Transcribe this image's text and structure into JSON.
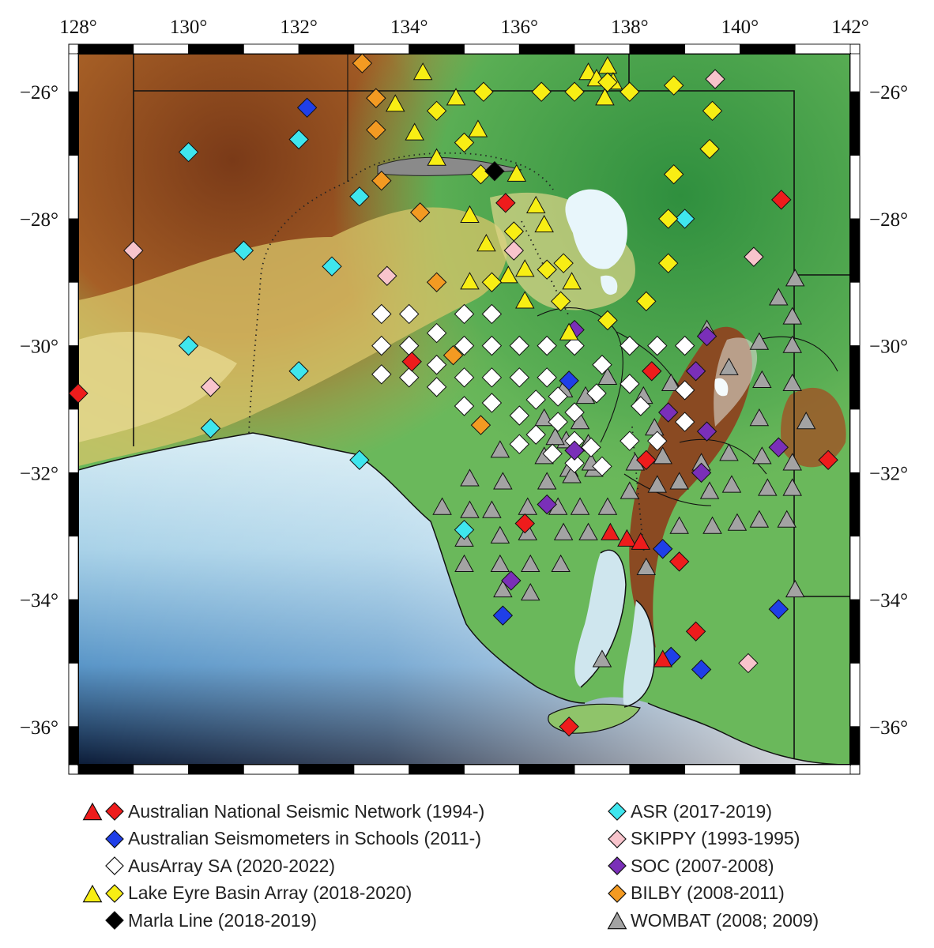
{
  "map": {
    "lon_ticks": [
      "128°",
      "130°",
      "132°",
      "134°",
      "136°",
      "138°",
      "140°",
      "142°"
    ],
    "lat_ticks": [
      "−26°",
      "−28°",
      "−30°",
      "−32°",
      "−34°",
      "−36°"
    ],
    "lon_values": [
      128,
      130,
      132,
      134,
      136,
      138,
      140,
      142
    ],
    "lat_values": [
      -26,
      -28,
      -30,
      -32,
      -34,
      -36
    ],
    "extent": {
      "lon": [
        128,
        142
      ],
      "lat": [
        -36.6,
        -25.4
      ]
    }
  },
  "colors": {
    "ANSN": "#ee1c1c",
    "AuSIS": "#1f3fe8",
    "AusArray": "#ffffff",
    "LEBA": "#f8ee14",
    "Marla": "#000000",
    "ASR": "#3fe6ee",
    "SKIPPY": "#f8c4cc",
    "SOC": "#7a2fb8",
    "BILBY": "#f39a22",
    "WOMBAT": "#a3a3a3"
  },
  "legend": {
    "left": [
      {
        "label": "Australian National Seismic Network (1994-)",
        "symbols": [
          "triangle",
          "diamond"
        ],
        "network": "ANSN"
      },
      {
        "label": "Australian Seismometers in Schools (2011-)",
        "symbols": [
          "diamond"
        ],
        "network": "AuSIS"
      },
      {
        "label": "AusArray SA (2020-2022)",
        "symbols": [
          "diamond"
        ],
        "network": "AusArray"
      },
      {
        "label": "Lake Eyre Basin Array (2018-2020)",
        "symbols": [
          "triangle",
          "diamond"
        ],
        "network": "LEBA"
      },
      {
        "label": "Marla Line (2018-2019)",
        "symbols": [
          "diamond"
        ],
        "network": "Marla"
      }
    ],
    "right": [
      {
        "label": "ASR (2017-2019)",
        "symbols": [
          "diamond"
        ],
        "network": "ASR"
      },
      {
        "label": "SKIPPY (1993-1995)",
        "symbols": [
          "diamond"
        ],
        "network": "SKIPPY"
      },
      {
        "label": "SOC (2007-2008)",
        "symbols": [
          "diamond"
        ],
        "network": "SOC"
      },
      {
        "label": "BILBY (2008-2011)",
        "symbols": [
          "diamond"
        ],
        "network": "BILBY"
      },
      {
        "label": "WOMBAT (2008; 2009)",
        "symbols": [
          "triangle"
        ],
        "network": "WOMBAT"
      }
    ]
  },
  "stations": {
    "ANSN": {
      "diamond": [
        [
          128.0,
          -30.75
        ],
        [
          134.05,
          -30.25
        ],
        [
          135.75,
          -27.75
        ],
        [
          138.4,
          -30.4
        ],
        [
          138.3,
          -31.8
        ],
        [
          136.1,
          -32.8
        ],
        [
          138.9,
          -33.4
        ],
        [
          139.2,
          -34.5
        ],
        [
          136.9,
          -36.0
        ],
        [
          140.75,
          -27.7
        ],
        [
          141.6,
          -31.8
        ]
      ],
      "triangle": [
        [
          137.65,
          -32.95
        ],
        [
          137.95,
          -33.05
        ],
        [
          138.2,
          -33.1
        ],
        [
          138.6,
          -34.95
        ]
      ]
    },
    "AuSIS": {
      "diamond": [
        [
          132.15,
          -26.25
        ],
        [
          136.9,
          -30.55
        ],
        [
          138.6,
          -33.2
        ],
        [
          135.7,
          -34.25
        ],
        [
          138.75,
          -34.9
        ],
        [
          139.3,
          -35.1
        ],
        [
          140.7,
          -34.15
        ]
      ]
    },
    "AusArray": {
      "diamond": [
        [
          133.5,
          -29.5
        ],
        [
          134.0,
          -29.5
        ],
        [
          135.0,
          -29.5
        ],
        [
          135.5,
          -29.5
        ],
        [
          133.5,
          -30.0
        ],
        [
          134.0,
          -30.0
        ],
        [
          134.5,
          -29.8
        ],
        [
          135.0,
          -30.0
        ],
        [
          135.5,
          -30.0
        ],
        [
          136.0,
          -30.0
        ],
        [
          136.5,
          -30.0
        ],
        [
          137.0,
          -30.0
        ],
        [
          133.5,
          -30.45
        ],
        [
          134.0,
          -30.5
        ],
        [
          134.5,
          -30.3
        ],
        [
          135.0,
          -30.5
        ],
        [
          135.5,
          -30.5
        ],
        [
          136.0,
          -30.5
        ],
        [
          136.5,
          -30.5
        ],
        [
          137.5,
          -30.3
        ],
        [
          134.5,
          -30.65
        ],
        [
          135.0,
          -30.95
        ],
        [
          135.5,
          -30.9
        ],
        [
          136.0,
          -31.1
        ],
        [
          136.3,
          -30.85
        ],
        [
          136.7,
          -30.8
        ],
        [
          137.0,
          -31.05
        ],
        [
          137.4,
          -30.75
        ],
        [
          136.3,
          -31.4
        ],
        [
          136.7,
          -31.2
        ],
        [
          136.0,
          -31.55
        ],
        [
          136.6,
          -31.7
        ],
        [
          137.0,
          -31.5
        ],
        [
          137.3,
          -31.6
        ],
        [
          137.5,
          -31.9
        ],
        [
          137.0,
          -31.85
        ],
        [
          138.0,
          -30.0
        ],
        [
          138.5,
          -30.0
        ],
        [
          139.0,
          -30.0
        ],
        [
          138.0,
          -30.6
        ],
        [
          138.2,
          -30.95
        ],
        [
          138.0,
          -31.5
        ],
        [
          138.5,
          -31.5
        ],
        [
          139.0,
          -30.7
        ],
        [
          139.0,
          -31.2
        ]
      ]
    },
    "LEBA": {
      "diamond": [
        [
          134.5,
          -26.3
        ],
        [
          135.0,
          -26.8
        ],
        [
          135.35,
          -26.0
        ],
        [
          136.4,
          -26.0
        ],
        [
          137.0,
          -26.0
        ],
        [
          137.6,
          -25.85
        ],
        [
          138.0,
          -26.0
        ],
        [
          138.8,
          -25.9
        ],
        [
          139.5,
          -26.3
        ],
        [
          139.45,
          -26.9
        ],
        [
          138.8,
          -27.3
        ],
        [
          138.7,
          -28.0
        ],
        [
          138.7,
          -28.7
        ],
        [
          138.3,
          -29.3
        ],
        [
          137.6,
          -29.6
        ],
        [
          136.75,
          -29.3
        ],
        [
          136.5,
          -28.8
        ],
        [
          136.8,
          -28.7
        ],
        [
          135.9,
          -28.2
        ],
        [
          135.5,
          -29.0
        ],
        [
          135.3,
          -27.3
        ]
      ],
      "triangle": [
        [
          134.25,
          -25.7
        ],
        [
          133.75,
          -26.2
        ],
        [
          134.1,
          -26.65
        ],
        [
          134.85,
          -26.1
        ],
        [
          135.25,
          -26.6
        ],
        [
          134.5,
          -27.05
        ],
        [
          135.95,
          -27.3
        ],
        [
          135.1,
          -27.95
        ],
        [
          136.3,
          -27.8
        ],
        [
          136.45,
          -28.1
        ],
        [
          135.4,
          -28.4
        ],
        [
          136.1,
          -28.8
        ],
        [
          135.8,
          -28.9
        ],
        [
          135.1,
          -29.0
        ],
        [
          136.1,
          -29.3
        ],
        [
          136.95,
          -29.0
        ],
        [
          137.25,
          -25.7
        ],
        [
          137.4,
          -25.8
        ],
        [
          137.6,
          -25.6
        ],
        [
          137.55,
          -26.1
        ],
        [
          137.7,
          -25.85
        ],
        [
          136.9,
          -29.8
        ]
      ]
    },
    "Marla": {
      "diamond": [
        [
          135.55,
          -27.25
        ]
      ]
    },
    "ASR": {
      "diamond": [
        [
          130.0,
          -26.95
        ],
        [
          132.0,
          -26.75
        ],
        [
          133.1,
          -27.65
        ],
        [
          131.0,
          -28.5
        ],
        [
          132.6,
          -28.75
        ],
        [
          130.0,
          -30.0
        ],
        [
          132.0,
          -30.4
        ],
        [
          130.4,
          -31.3
        ],
        [
          133.1,
          -31.8
        ],
        [
          135.0,
          -32.9
        ],
        [
          139.0,
          -28.0
        ]
      ]
    },
    "SKIPPY": {
      "diamond": [
        [
          129.0,
          -28.5
        ],
        [
          133.6,
          -28.9
        ],
        [
          135.9,
          -28.5
        ],
        [
          130.4,
          -30.65
        ],
        [
          139.55,
          -25.8
        ],
        [
          140.25,
          -28.6
        ],
        [
          140.15,
          -35.0
        ]
      ]
    },
    "SOC": {
      "diamond": [
        [
          137.0,
          -29.75
        ],
        [
          139.4,
          -29.85
        ],
        [
          139.2,
          -30.4
        ],
        [
          138.7,
          -31.05
        ],
        [
          139.4,
          -31.35
        ],
        [
          140.7,
          -31.6
        ],
        [
          136.5,
          -32.5
        ],
        [
          135.85,
          -33.7
        ],
        [
          137.0,
          -31.65
        ],
        [
          139.3,
          -32.0
        ]
      ]
    },
    "BILBY": {
      "diamond": [
        [
          133.15,
          -25.55
        ],
        [
          133.4,
          -26.1
        ],
        [
          133.4,
          -26.6
        ],
        [
          134.2,
          -27.9
        ],
        [
          134.5,
          -29.0
        ],
        [
          134.8,
          -30.15
        ],
        [
          135.3,
          -31.25
        ],
        [
          133.5,
          -27.4
        ]
      ]
    },
    "WOMBAT": {
      "triangle": [
        [
          135.1,
          -32.1
        ],
        [
          135.65,
          -31.65
        ],
        [
          135.7,
          -32.15
        ],
        [
          134.6,
          -32.55
        ],
        [
          135.1,
          -32.6
        ],
        [
          135.5,
          -32.6
        ],
        [
          136.15,
          -32.55
        ],
        [
          136.7,
          -32.55
        ],
        [
          137.1,
          -32.55
        ],
        [
          137.6,
          -32.55
        ],
        [
          135.0,
          -33.05
        ],
        [
          135.65,
          -33.0
        ],
        [
          136.15,
          -32.95
        ],
        [
          136.8,
          -32.95
        ],
        [
          137.25,
          -32.95
        ],
        [
          135.0,
          -33.45
        ],
        [
          135.65,
          -33.45
        ],
        [
          136.2,
          -33.45
        ],
        [
          136.75,
          -33.45
        ],
        [
          135.7,
          -33.85
        ],
        [
          136.2,
          -33.9
        ],
        [
          136.45,
          -31.75
        ],
        [
          136.85,
          -31.5
        ],
        [
          136.9,
          -31.95
        ],
        [
          137.35,
          -31.95
        ],
        [
          137.25,
          -31.55
        ],
        [
          136.5,
          -32.15
        ],
        [
          136.95,
          -32.05
        ],
        [
          137.3,
          -31.85
        ],
        [
          136.8,
          -30.7
        ],
        [
          137.2,
          -30.8
        ],
        [
          136.65,
          -31.45
        ],
        [
          136.45,
          -31.15
        ],
        [
          137.1,
          -31.2
        ],
        [
          137.6,
          -30.5
        ],
        [
          138.25,
          -30.8
        ],
        [
          138.75,
          -30.6
        ],
        [
          138.45,
          -31.3
        ],
        [
          138.6,
          -31.75
        ],
        [
          138.1,
          -31.85
        ],
        [
          138.0,
          -32.3
        ],
        [
          138.5,
          -32.2
        ],
        [
          138.9,
          -32.15
        ],
        [
          139.3,
          -31.85
        ],
        [
          139.8,
          -31.7
        ],
        [
          139.45,
          -32.3
        ],
        [
          139.85,
          -32.2
        ],
        [
          138.9,
          -32.85
        ],
        [
          139.5,
          -32.85
        ],
        [
          139.95,
          -32.8
        ],
        [
          140.35,
          -32.75
        ],
        [
          140.85,
          -32.75
        ],
        [
          140.5,
          -32.25
        ],
        [
          140.95,
          -32.25
        ],
        [
          140.4,
          -31.75
        ],
        [
          140.95,
          -31.85
        ],
        [
          141.2,
          -31.2
        ],
        [
          140.35,
          -31.15
        ],
        [
          140.4,
          -30.55
        ],
        [
          140.95,
          -30.6
        ],
        [
          140.95,
          -30.0
        ],
        [
          140.35,
          -29.95
        ],
        [
          139.8,
          -30.35
        ],
        [
          139.4,
          -29.75
        ],
        [
          140.7,
          -29.25
        ],
        [
          140.95,
          -29.55
        ],
        [
          141.0,
          -28.95
        ],
        [
          138.3,
          -33.5
        ],
        [
          137.5,
          -34.95
        ],
        [
          141.0,
          -33.85
        ]
      ]
    }
  }
}
